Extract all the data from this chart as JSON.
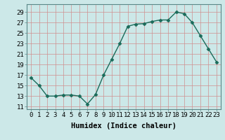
{
  "x": [
    0,
    1,
    2,
    3,
    4,
    5,
    6,
    7,
    8,
    9,
    10,
    11,
    12,
    13,
    14,
    15,
    16,
    17,
    18,
    19,
    20,
    21,
    22,
    23
  ],
  "y": [
    16.5,
    15.0,
    13.0,
    13.0,
    13.2,
    13.2,
    13.0,
    11.5,
    13.3,
    17.0,
    20.0,
    23.0,
    26.3,
    26.7,
    26.8,
    27.2,
    27.5,
    27.5,
    29.0,
    28.7,
    27.0,
    24.5,
    22.0,
    19.5
  ],
  "line_color": "#1a6b5a",
  "marker": "D",
  "marker_size": 2.5,
  "line_width": 1.0,
  "bg_color": "#cce8e8",
  "grid_color": "#d09090",
  "xlabel": "Humidex (Indice chaleur)",
  "xlim": [
    -0.5,
    23.5
  ],
  "ylim": [
    10.5,
    30.5
  ],
  "yticks": [
    11,
    13,
    15,
    17,
    19,
    21,
    23,
    25,
    27,
    29
  ],
  "xticks": [
    0,
    1,
    2,
    3,
    4,
    5,
    6,
    7,
    8,
    9,
    10,
    11,
    12,
    13,
    14,
    15,
    16,
    17,
    18,
    19,
    20,
    21,
    22,
    23
  ],
  "xlabel_fontsize": 7.5,
  "tick_fontsize": 6.5
}
